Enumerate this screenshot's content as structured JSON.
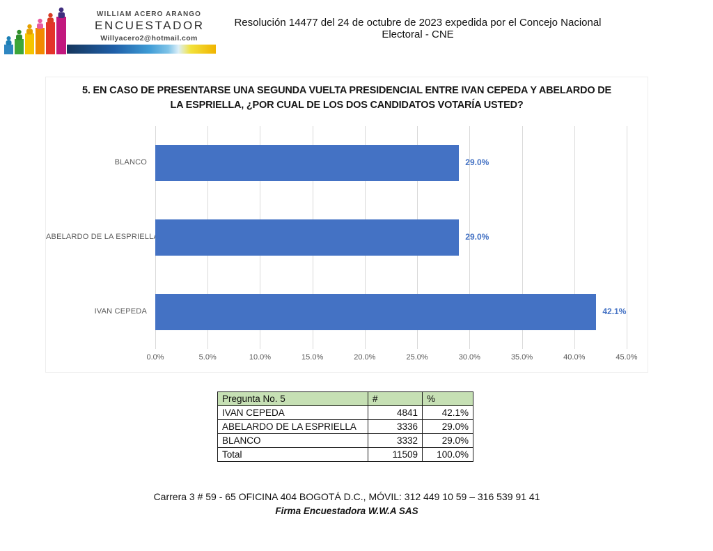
{
  "header": {
    "brand": {
      "name": "WILLIAM ACERO ARANGO",
      "role": "ENCUESTADOR",
      "email": "Willyacero2@hotmail.com"
    },
    "resolution": "Resolución 14477 del 24 de octubre de 2023 expedida por el Concejo Nacional Electoral - CNE"
  },
  "chart_data": {
    "type": "bar",
    "orientation": "horizontal",
    "title_line1": "5. EN CASO DE PRESENTARSE UNA SEGUNDA VUELTA PRESIDENCIAL ENTRE IVAN CEPEDA Y ABELARDO DE",
    "title_line2": "LA ESPRIELLA, ¿POR CUAL DE LOS DOS CANDIDATOS VOTARÍA USTED?",
    "categories": [
      "BLANCO",
      "ABELARDO DE LA ESPRIELLA",
      "IVAN CEPEDA"
    ],
    "values": [
      29.0,
      29.0,
      42.1
    ],
    "data_labels": [
      "29.0%",
      "29.0%",
      "42.1%"
    ],
    "xlim": [
      0,
      45
    ],
    "x_tick_values": [
      0,
      5,
      10,
      15,
      20,
      25,
      30,
      35,
      40,
      45
    ],
    "x_tick_labels": [
      "0.0%",
      "5.0%",
      "10.0%",
      "15.0%",
      "20.0%",
      "25.0%",
      "30.0%",
      "35.0%",
      "40.0%",
      "45.0%"
    ],
    "grid": true,
    "legend": "none",
    "bar_color": "#4472C4",
    "data_label_color": "#4472C4",
    "axis_label_color": "#595959",
    "gridline_color": "#D9D9D9"
  },
  "table": {
    "header": [
      "Pregunta No. 5",
      "#",
      "%"
    ],
    "rows": [
      [
        "IVAN CEPEDA",
        "4841",
        "42.1%"
      ],
      [
        "ABELARDO DE LA ESPRIELLA",
        "3336",
        "29.0%"
      ],
      [
        "BLANCO",
        "3332",
        "29.0%"
      ],
      [
        "Total",
        "11509",
        "100.0%"
      ]
    ],
    "header_bg": "#C6E0B4"
  },
  "footer": {
    "address": "Carrera  3 # 59 - 65  OFICINA  404 BOGOTÁ D.C.,  MÓVIL: 312 449 10 59 – 316 539 91 41",
    "firm": "Firma Encuestadora W.W.A SAS"
  }
}
